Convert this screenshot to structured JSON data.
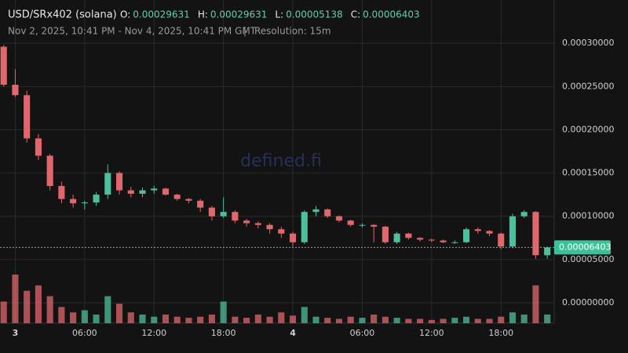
{
  "chart_data": {
    "type": "candlestick",
    "title": "USD/SRx402 (solana)",
    "ohlc_legend": [
      {
        "key": "O:",
        "value": "0.00029631"
      },
      {
        "key": "H:",
        "value": "0.00029631"
      },
      {
        "key": "L:",
        "value": "0.00005138"
      },
      {
        "key": "C:",
        "value": "0.00006403"
      }
    ],
    "subtitle": "Nov 2, 2025, 10:41 PM - Nov 4, 2025, 10:41 PM GMT",
    "separator": "|",
    "resolution": "Resolution: 15m",
    "watermark": "defined.fi",
    "up_color": "#4dbf9c",
    "down_color": "#e0686d",
    "grid": true,
    "xlim": [
      -1.32,
      46.6
    ],
    "xticks": [
      {
        "value": 0,
        "label": "3"
      },
      {
        "value": 6,
        "label": "06:00"
      },
      {
        "value": 12,
        "label": "12:00"
      },
      {
        "value": 18,
        "label": "18:00"
      },
      {
        "value": 24,
        "label": "4"
      },
      {
        "value": 30,
        "label": "06:00"
      },
      {
        "value": 36,
        "label": "12:00"
      },
      {
        "value": 42,
        "label": "18:00"
      }
    ],
    "ylim": [
      -2.36e-05,
      0.00035
    ],
    "yticks": [
      {
        "value": 0,
        "label": "0.00000000"
      },
      {
        "value": 5e-05,
        "label": "0.00005000"
      },
      {
        "value": 0.0001,
        "label": "0.00010000"
      },
      {
        "value": 0.00015,
        "label": "0.00015000"
      },
      {
        "value": 0.0002,
        "label": "0.00020000"
      },
      {
        "value": 0.00025,
        "label": "0.00025000"
      },
      {
        "value": 0.0003,
        "label": "0.00030000"
      }
    ],
    "last_price": {
      "value": 6.403e-05,
      "label": "0.00006403"
    },
    "x": [
      -1,
      0,
      1,
      2,
      3,
      4,
      5,
      6,
      7,
      8,
      9,
      10,
      11,
      12,
      13,
      14,
      15,
      16,
      17,
      18,
      19,
      20,
      21,
      22,
      23,
      24,
      25,
      26,
      27,
      28,
      29,
      30,
      31,
      32,
      33,
      34,
      35,
      36,
      37,
      38,
      39,
      40,
      41,
      42,
      43,
      44,
      45,
      46
    ],
    "open": [
      0.000296,
      0.000252,
      0.00024,
      0.00019,
      0.00017,
      0.000135,
      0.00012,
      0.000115,
      0.000116,
      0.000125,
      0.00015,
      0.00013,
      0.000126,
      0.00013,
      0.000132,
      0.000125,
      0.00012,
      0.000118,
      0.00011,
      0.0001,
      0.000105,
      9.5e-05,
      9.2e-05,
      9e-05,
      8.5e-05,
      8e-05,
      7e-05,
      0.000105,
      0.000108,
      0.0001,
      9.5e-05,
      9e-05,
      9e-05,
      8.8e-05,
      7e-05,
      8e-05,
      7.5e-05,
      7.3e-05,
      7.2e-05,
      7e-05,
      7e-05,
      8.5e-05,
      8.3e-05,
      8e-05,
      6.5e-05,
      0.0001,
      0.000105,
      5.5e-05
    ],
    "high": [
      0.000298,
      0.00027,
      0.000245,
      0.000195,
      0.000172,
      0.00014,
      0.000125,
      0.000118,
      0.000128,
      0.00016,
      0.000152,
      0.000134,
      0.000133,
      0.000135,
      0.000133,
      0.000126,
      0.000121,
      0.00012,
      0.000112,
      0.000122,
      0.000107,
      9.7e-05,
      9.4e-05,
      9.2e-05,
      8.8e-05,
      8.2e-05,
      0.000107,
      0.000112,
      0.000109,
      0.000101,
      9.6e-05,
      9.2e-05,
      9.1e-05,
      8.9e-05,
      8.2e-05,
      8.1e-05,
      7.6e-05,
      7.4e-05,
      7.3e-05,
      7.2e-05,
      8.7e-05,
      8.7e-05,
      8.4e-05,
      8.1e-05,
      0.000103,
      0.000107,
      0.000106,
      6.5e-05
    ],
    "low": [
      0.00025,
      0.000238,
      0.000185,
      0.000165,
      0.00013,
      0.000115,
      0.00011,
      0.000108,
      0.000112,
      0.00012,
      0.000125,
      0.000122,
      0.000122,
      0.000126,
      0.000124,
      0.000118,
      0.000115,
      0.000105,
      9.5e-05,
      9.8e-05,
      9.2e-05,
      8.8e-05,
      8.6e-05,
      8e-05,
      7.5e-05,
      6.5e-05,
      6.8e-05,
      0.0001,
      9.8e-05,
      9.3e-05,
      8.8e-05,
      8.7e-05,
      7e-05,
      6.8e-05,
      6.8e-05,
      7.3e-05,
      7.1e-05,
      7e-05,
      6.9e-05,
      6.8e-05,
      6.9e-05,
      8e-05,
      7.7e-05,
      6.2e-05,
      6.3e-05,
      9.8e-05,
      5.1e-05,
      5.1e-05
    ],
    "close": [
      0.000252,
      0.00024,
      0.00019,
      0.00017,
      0.000135,
      0.00012,
      0.000115,
      0.000116,
      0.000125,
      0.00015,
      0.00013,
      0.000126,
      0.00013,
      0.000132,
      0.000125,
      0.00012,
      0.000118,
      0.00011,
      0.0001,
      0.000105,
      9.5e-05,
      9.2e-05,
      9e-05,
      8.5e-05,
      8e-05,
      7e-05,
      0.000105,
      0.000108,
      0.0001,
      9.5e-05,
      9e-05,
      9e-05,
      8.8e-05,
      7e-05,
      8e-05,
      7.5e-05,
      7.3e-05,
      7.2e-05,
      7e-05,
      7e-05,
      8.5e-05,
      8.3e-05,
      8e-05,
      6.5e-05,
      0.0001,
      0.000105,
      5.5e-05,
      6.403e-05
    ],
    "volume": [
      20,
      45,
      30,
      35,
      25,
      15,
      10,
      12,
      8,
      25,
      18,
      10,
      8,
      6,
      8,
      6,
      5,
      6,
      8,
      20,
      6,
      5,
      8,
      6,
      10,
      7,
      15,
      6,
      5,
      4,
      6,
      5,
      8,
      6,
      5,
      4,
      4,
      3,
      4,
      5,
      6,
      4,
      4,
      6,
      10,
      8,
      35,
      8
    ]
  }
}
